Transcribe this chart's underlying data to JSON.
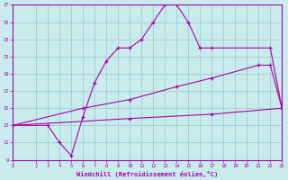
{
  "xlabel": "Windchill (Refroidissement éolien,°C)",
  "background_color": "#c8ecec",
  "line_color": "#aa00aa",
  "grid_color": "#a0cece",
  "xmin": 0,
  "xmax": 23,
  "ymin": 9,
  "ymax": 27,
  "yticks": [
    9,
    11,
    13,
    15,
    17,
    19,
    21,
    23,
    25,
    27
  ],
  "xticks": [
    0,
    2,
    3,
    4,
    5,
    6,
    7,
    8,
    9,
    10,
    11,
    12,
    13,
    14,
    15,
    16,
    17,
    18,
    19,
    20,
    21,
    22,
    23
  ],
  "line1_x": [
    0,
    3,
    4,
    5,
    6,
    7,
    8,
    9,
    10,
    11,
    12,
    13,
    14,
    15,
    16,
    17,
    22,
    23
  ],
  "line1_y": [
    13.0,
    13.0,
    11.0,
    9.5,
    14.0,
    18.0,
    20.5,
    22.0,
    22.0,
    23.0,
    25.0,
    27.0,
    27.0,
    25.0,
    22.0,
    22.0,
    22.0,
    15.0
  ],
  "line2_x": [
    0,
    6,
    10,
    14,
    17,
    21,
    22,
    23
  ],
  "line2_y": [
    13.0,
    15.0,
    16.0,
    17.5,
    18.5,
    20.0,
    20.0,
    15.0
  ],
  "line3_x": [
    0,
    10,
    17,
    23
  ],
  "line3_y": [
    13.0,
    13.8,
    14.3,
    15.0
  ]
}
